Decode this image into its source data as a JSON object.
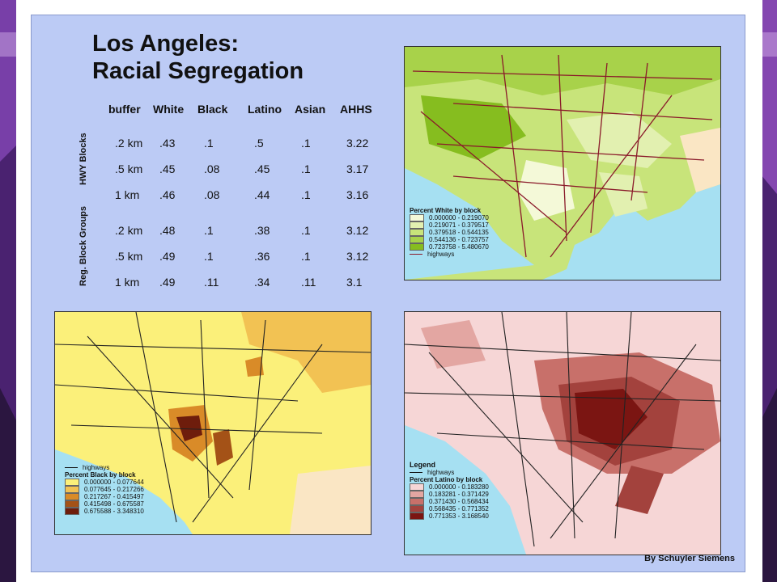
{
  "title_line1": "Los Angeles:",
  "title_line2": "Racial Segregation",
  "table": {
    "headers": [
      "buffer",
      "White",
      "Black",
      "Latino",
      "Asian",
      "AHHS"
    ],
    "group1_label": "HWY Blocks",
    "group2_label": "Reg. Block Groups",
    "rows": [
      [
        ".2 km",
        ".43",
        ".1",
        ".5",
        ".1",
        "3.22"
      ],
      [
        ".5 km",
        ".45",
        ".08",
        ".45",
        ".1",
        "3.17"
      ],
      [
        "1 km",
        ".46",
        ".08",
        ".44",
        ".1",
        "3.16"
      ],
      [
        ".2 km",
        ".48",
        ".1",
        ".38",
        ".1",
        "3.12"
      ],
      [
        ".5 km",
        ".49",
        ".1",
        ".36",
        ".1",
        "3.12"
      ],
      [
        "1 km",
        ".49",
        ".11",
        ".34",
        ".11",
        "3.1"
      ]
    ]
  },
  "map_white": {
    "legend_title": "Percent White by block",
    "classes": [
      "0.000000 - 0.219070",
      "0.219071 - 0.379517",
      "0.379518 - 0.544135",
      "0.544136 - 0.723757",
      "0.723758 - 5.480670"
    ],
    "colors": [
      "#f4f9d8",
      "#e2f0b0",
      "#c8e47a",
      "#a8d24a",
      "#86bd1f"
    ],
    "highways_label": "highways"
  },
  "map_black": {
    "legend_title": "Percent Black by block",
    "classes": [
      "0.000000 - 0.077644",
      "0.077645 - 0.217266",
      "0.217267 - 0.415497",
      "0.415498 - 0.675587",
      "0.675588 - 3.348310"
    ],
    "colors": [
      "#fbf07a",
      "#f2c253",
      "#d98b28",
      "#a45217",
      "#6e1d0c"
    ],
    "highways_label": "highways"
  },
  "map_latino": {
    "legend_label": "Legend",
    "legend_title": "Percent Latino by block",
    "classes": [
      "0.000000 - 0.183280",
      "0.183281 - 0.371429",
      "0.371430 - 0.568434",
      "0.568435 - 0.771352",
      "0.771353 - 3.168540"
    ],
    "colors": [
      "#f6d6d6",
      "#e3a6a2",
      "#c8706a",
      "#a3423d",
      "#7b1512"
    ],
    "highways_label": "highways"
  },
  "byline": "By Schuyler Siemens",
  "colors": {
    "poster_bg": "#bccbf5",
    "water": "#a6e0f2",
    "land_outside": "#fae6c4"
  }
}
